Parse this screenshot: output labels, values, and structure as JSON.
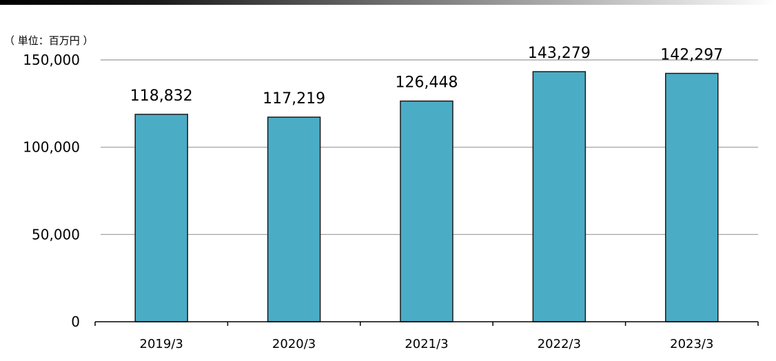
{
  "unit_label": "（ 単位：百万円 ）",
  "colors": {
    "bar": "#4bacc6",
    "bar_stroke": "#1a1a1a",
    "grid": "#9a9a9a",
    "axis": "#000000"
  },
  "chart_data": {
    "type": "bar",
    "categories": [
      "2019/3",
      "2020/3",
      "2021/3",
      "2022/3",
      "2023/3"
    ],
    "values": [
      118832,
      117219,
      126448,
      143279,
      142297
    ],
    "data_labels": [
      "118,832",
      "117,219",
      "126,448",
      "143,279",
      "142,297"
    ],
    "yticks": [
      0,
      50000,
      100000,
      150000
    ],
    "ytick_labels": [
      "0",
      "50,000",
      "100,000",
      "150,000"
    ],
    "ylim": [
      0,
      150000
    ],
    "grid": true,
    "title": "",
    "xlabel": "",
    "ylabel": ""
  }
}
